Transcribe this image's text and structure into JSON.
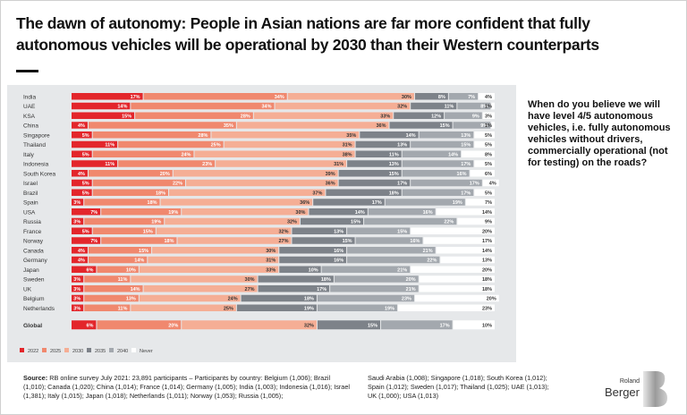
{
  "title": "The dawn of autonomy: People in Asian nations are far more confident that fully autonomous vehicles will be operational by 2030 than their Western counterparts",
  "question": "When do you believe we will have level 4/5 autonomous vehicles, i.e. fully autonomous vehicles without drivers, commercially operational (not for testing) on the roads?",
  "source_label": "Source:",
  "source_text": " RB online survey July 2021: 23,891 participants – Participants by country: Belgium (1,006); Brazil (1,010); Canada (1,020); China (1,014); France (1,014); Germany (1,005); India (1,003); Indonesia (1,016); Israel (1,381); Italy (1,015); Japan (1,018); Netherlands (1,011); Norway (1,053); Russia (1,005);",
  "source_text2": "Saudi Arabia (1,008); Singapore (1,018); South Korea (1,012); Spain (1,012); Sweden (1,017); Thailand (1,025); UAE (1,013); UK (1,000); USA (1,013)",
  "logo": {
    "line1": "Roland",
    "line2": "Berger"
  },
  "chart_data": {
    "type": "bar",
    "orientation": "horizontal-stacked-100",
    "title": "The dawn of autonomy: People in Asian nations are far more confident that fully autonomous vehicles will be operational by 2030 than their Western counterparts",
    "xlabel": "",
    "ylabel": "",
    "unit": "%",
    "legend_position": "bottom-left",
    "series_names": [
      "2022",
      "2025",
      "2030",
      "2035",
      "2040",
      "Never"
    ],
    "colors": [
      "#e3262b",
      "#f0886e",
      "#f5ae95",
      "#7d8289",
      "#a3a8ae",
      "#ffffff"
    ],
    "label_colors": [
      "#ffffff",
      "#ffffff",
      "#333333",
      "#ffffff",
      "#ffffff",
      "#333333"
    ],
    "categories": [
      "India",
      "UAE",
      "KSA",
      "China",
      "Singapore",
      "Thailand",
      "Italy",
      "Indonesia",
      "South Korea",
      "Israel",
      "Brazil",
      "Spain",
      "USA",
      "Russia",
      "France",
      "Norway",
      "Canada",
      "Germany",
      "Japan",
      "Sweden",
      "UK",
      "Belgium",
      "Netherlands"
    ],
    "rows": [
      [
        17,
        34,
        30,
        8,
        7,
        4
      ],
      [
        14,
        34,
        32,
        11,
        8,
        1
      ],
      [
        15,
        28,
        33,
        12,
        9,
        3
      ],
      [
        4,
        35,
        36,
        15,
        9,
        1
      ],
      [
        5,
        28,
        35,
        14,
        13,
        5
      ],
      [
        11,
        25,
        31,
        13,
        15,
        5
      ],
      [
        5,
        24,
        38,
        11,
        14,
        8
      ],
      [
        11,
        23,
        31,
        13,
        17,
        5
      ],
      [
        4,
        20,
        39,
        15,
        16,
        6
      ],
      [
        5,
        22,
        36,
        17,
        17,
        4
      ],
      [
        5,
        18,
        37,
        18,
        17,
        5
      ],
      [
        3,
        18,
        36,
        17,
        19,
        7
      ],
      [
        7,
        19,
        30,
        14,
        16,
        14
      ],
      [
        3,
        19,
        32,
        15,
        22,
        9
      ],
      [
        5,
        15,
        32,
        13,
        15,
        20
      ],
      [
        7,
        18,
        27,
        15,
        16,
        17
      ],
      [
        4,
        15,
        30,
        16,
        21,
        14
      ],
      [
        4,
        14,
        31,
        16,
        22,
        13
      ],
      [
        6,
        10,
        33,
        10,
        21,
        20
      ],
      [
        3,
        11,
        30,
        18,
        20,
        18
      ],
      [
        3,
        14,
        27,
        17,
        21,
        18
      ],
      [
        3,
        13,
        24,
        18,
        23,
        20
      ],
      [
        3,
        11,
        25,
        19,
        19,
        23
      ]
    ],
    "total": {
      "label": "Global",
      "values": [
        6,
        20,
        32,
        15,
        17,
        10
      ]
    },
    "xlim": [
      0,
      100
    ]
  }
}
